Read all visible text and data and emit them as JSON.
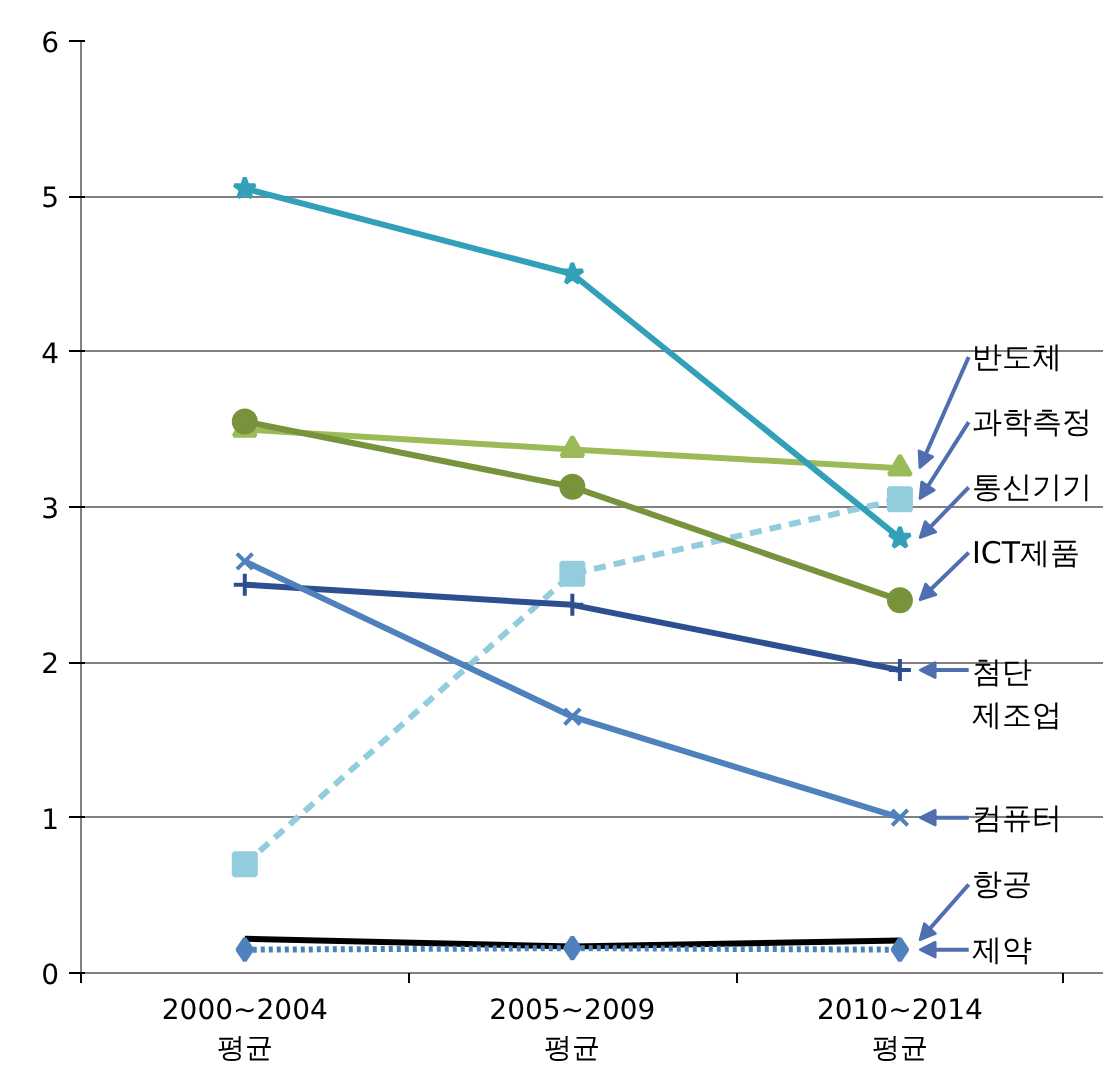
{
  "chart_data": {
    "type": "line",
    "categories": [
      "2000~2004 평균",
      "2005~2009 평균",
      "2010~2014 평균"
    ],
    "ylim": [
      0,
      6
    ],
    "yticks": [
      0,
      1,
      2,
      3,
      4,
      5,
      6
    ],
    "grid": "y",
    "series": [
      {
        "name": "반도체",
        "color": "#9bbb59",
        "marker": "triangle",
        "values": [
          3.5,
          3.37,
          3.25
        ]
      },
      {
        "name": "과학측정",
        "color": "#93cddd",
        "marker": "square",
        "line_style": "dashed",
        "values": [
          0.7,
          2.57,
          3.05
        ]
      },
      {
        "name": "통신기기",
        "color": "#31a0b8",
        "marker": "star",
        "values": [
          5.05,
          4.5,
          2.8
        ]
      },
      {
        "name": "ICT제품",
        "color": "#77933c",
        "marker": "circle",
        "values": [
          3.55,
          3.13,
          2.4
        ]
      },
      {
        "name": "첨단 제조업",
        "color": "#2e4f8f",
        "marker": "cross",
        "values": [
          2.5,
          2.37,
          1.95
        ]
      },
      {
        "name": "컴퓨터",
        "color": "#4f81bd",
        "marker": "x",
        "values": [
          2.65,
          1.65,
          1.0
        ]
      },
      {
        "name": "항공",
        "color": "#000000",
        "marker": "none",
        "values": [
          0.22,
          0.17,
          0.21
        ]
      },
      {
        "name": "제약",
        "color": "#4f81bd",
        "marker": "diamond",
        "line_style": "dotted",
        "values": [
          0.15,
          0.16,
          0.15
        ]
      }
    ]
  }
}
